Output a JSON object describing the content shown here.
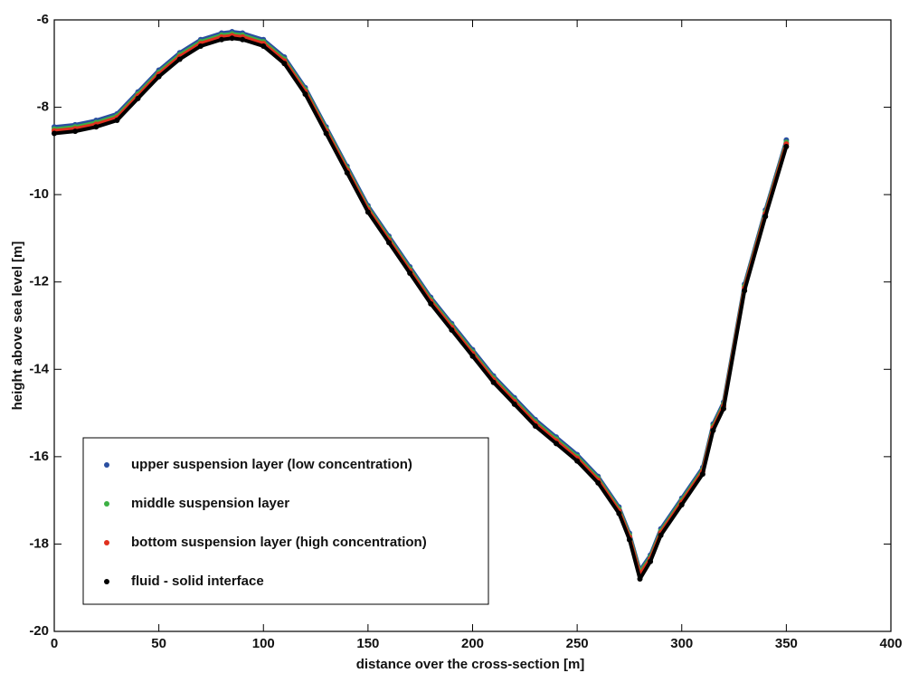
{
  "chart_data": {
    "type": "scatter",
    "xlabel": "distance over the cross-section [m]",
    "ylabel": "height above sea level [m]",
    "x": [
      0,
      10,
      20,
      30,
      40,
      50,
      60,
      70,
      80,
      85,
      90,
      100,
      110,
      120,
      130,
      140,
      150,
      160,
      170,
      180,
      190,
      200,
      210,
      220,
      230,
      240,
      250,
      260,
      270,
      275,
      280,
      285,
      290,
      300,
      310,
      315,
      320,
      330,
      340,
      350
    ],
    "series": [
      {
        "name": "upper suspension layer (low concentration)",
        "color": "#2a4fa0",
        "values": [
          -8.45,
          -8.4,
          -8.3,
          -8.15,
          -7.65,
          -7.15,
          -6.75,
          -6.45,
          -6.3,
          -6.27,
          -6.3,
          -6.45,
          -6.85,
          -7.55,
          -8.45,
          -9.35,
          -10.25,
          -10.95,
          -11.65,
          -12.35,
          -12.95,
          -13.55,
          -14.15,
          -14.65,
          -15.15,
          -15.55,
          -15.95,
          -16.45,
          -17.15,
          -17.75,
          -18.6,
          -18.25,
          -17.65,
          -16.95,
          -16.25,
          -15.25,
          -14.75,
          -12.05,
          -10.35,
          -8.75
        ]
      },
      {
        "name": "middle suspension layer",
        "color": "#3cb043",
        "values": [
          -8.5,
          -8.45,
          -8.35,
          -8.2,
          -7.7,
          -7.2,
          -6.8,
          -6.5,
          -6.35,
          -6.32,
          -6.35,
          -6.5,
          -6.9,
          -7.6,
          -8.5,
          -9.4,
          -10.3,
          -11.0,
          -11.7,
          -12.4,
          -13.0,
          -13.6,
          -14.2,
          -14.7,
          -15.2,
          -15.6,
          -16.0,
          -16.5,
          -17.2,
          -17.8,
          -18.65,
          -18.3,
          -17.7,
          -17.0,
          -16.3,
          -15.3,
          -14.8,
          -12.1,
          -10.4,
          -8.8
        ]
      },
      {
        "name": "bottom suspension layer (high concentration)",
        "color": "#e0301e",
        "values": [
          -8.54,
          -8.49,
          -8.39,
          -8.24,
          -7.74,
          -7.24,
          -6.84,
          -6.54,
          -6.39,
          -6.36,
          -6.39,
          -6.54,
          -6.94,
          -7.64,
          -8.54,
          -9.44,
          -10.34,
          -11.04,
          -11.74,
          -12.44,
          -13.04,
          -13.64,
          -14.24,
          -14.74,
          -15.24,
          -15.64,
          -16.04,
          -16.54,
          -17.24,
          -17.84,
          -18.7,
          -18.34,
          -17.74,
          -17.04,
          -16.34,
          -15.34,
          -14.84,
          -12.14,
          -10.44,
          -8.84
        ]
      },
      {
        "name": "fluid - solid interface",
        "color": "#000000",
        "values": [
          -8.6,
          -8.55,
          -8.45,
          -8.3,
          -7.8,
          -7.3,
          -6.9,
          -6.6,
          -6.45,
          -6.42,
          -6.45,
          -6.6,
          -7.0,
          -7.7,
          -8.6,
          -9.5,
          -10.4,
          -11.1,
          -11.8,
          -12.5,
          -13.1,
          -13.7,
          -14.3,
          -14.8,
          -15.3,
          -15.7,
          -16.1,
          -16.6,
          -17.3,
          -17.9,
          -18.8,
          -18.4,
          -17.8,
          -17.1,
          -16.4,
          -15.4,
          -14.9,
          -12.2,
          -10.5,
          -8.9
        ]
      }
    ],
    "xlim": [
      0,
      400
    ],
    "xticks": [
      0,
      50,
      100,
      150,
      200,
      250,
      300,
      350,
      400
    ],
    "ylim": [
      -20,
      -6
    ],
    "yticks": [
      -20,
      -18,
      -16,
      -14,
      -12,
      -10,
      -8,
      -6
    ],
    "grid": false,
    "legend": "lower left"
  }
}
